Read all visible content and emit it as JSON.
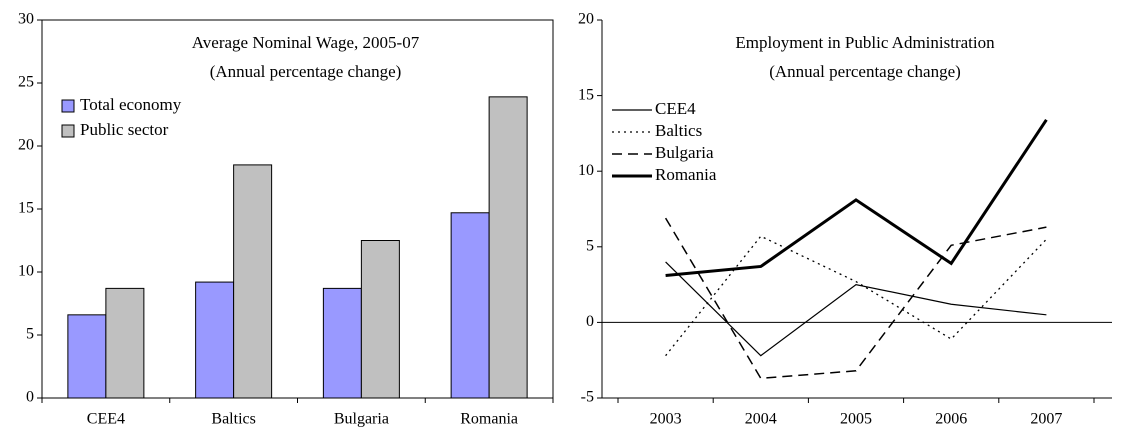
{
  "chart_data": [
    {
      "type": "bar",
      "title": "Average Nominal Wage, 2005-07",
      "subtitle": "(Annual percentage change)",
      "categories": [
        "CEE4",
        "Baltics",
        "Bulgaria",
        "Romania"
      ],
      "series": [
        {
          "name": "Total economy",
          "color": "#9999ff",
          "values": [
            6.6,
            9.2,
            8.7,
            14.7
          ]
        },
        {
          "name": "Public sector",
          "color": "#c0c0c0",
          "values": [
            8.7,
            18.5,
            12.5,
            23.9
          ]
        }
      ],
      "ylim": [
        0,
        30
      ],
      "yticks": [
        0,
        5,
        10,
        15,
        20,
        25,
        30
      ],
      "legend": "upper-left"
    },
    {
      "type": "line",
      "title": "Employment in Public Administration",
      "subtitle": "(Annual percentage change)",
      "categories": [
        "2003",
        "2004",
        "2005",
        "2006",
        "2007"
      ],
      "series": [
        {
          "name": "CEE4",
          "color": "#000000",
          "dash": "solid",
          "width": 1.2,
          "values": [
            4.0,
            -2.2,
            2.5,
            1.2,
            0.5
          ]
        },
        {
          "name": "Baltics",
          "color": "#000000",
          "dash": "dotted",
          "width": 1.3,
          "values": [
            -2.2,
            5.7,
            2.7,
            -1.1,
            5.5
          ]
        },
        {
          "name": "Bulgaria",
          "color": "#000000",
          "dash": "dashed",
          "width": 1.5,
          "values": [
            6.9,
            -3.7,
            -3.2,
            5.1,
            6.3
          ]
        },
        {
          "name": "Romania",
          "color": "#000000",
          "dash": "solid",
          "width": 3,
          "values": [
            3.1,
            3.7,
            8.1,
            3.9,
            13.4
          ]
        }
      ],
      "ylim": [
        -5,
        20
      ],
      "yticks": [
        -5,
        0,
        5,
        10,
        15,
        20
      ],
      "legend": "upper-left"
    }
  ]
}
